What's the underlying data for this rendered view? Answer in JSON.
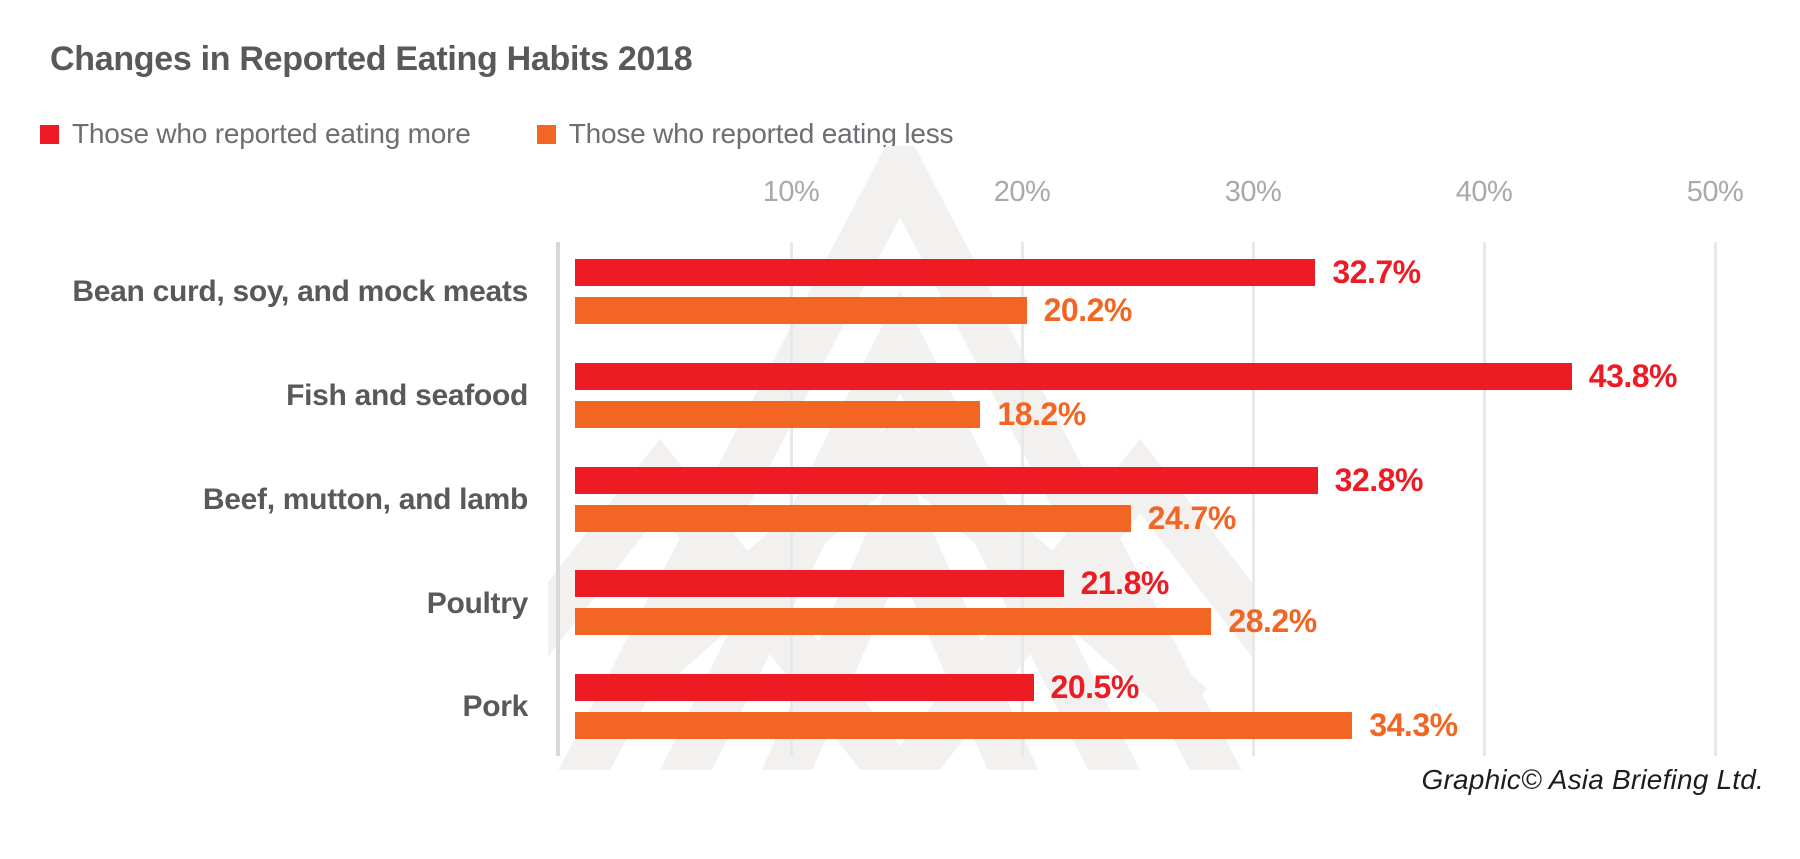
{
  "title": "Changes in Reported Eating Habits 2018",
  "legend": {
    "more": "Those who reported eating more",
    "less": "Those who reported eating less"
  },
  "credit": "Graphic© Asia Briefing Ltd.",
  "colors": {
    "more": "#ed1c24",
    "less": "#f26522",
    "heading_text": "#58595b",
    "legend_text": "#6d6e71",
    "tick_text": "#a7a9ac",
    "gridline": "#e7e8e9",
    "axis_line": "#d7d8d9",
    "watermark": "#f2f1ef"
  },
  "chart_data": {
    "type": "bar",
    "orientation": "horizontal",
    "title": "Changes in Reported Eating Habits 2018",
    "categories": [
      "Bean curd, soy, and mock meats",
      "Fish and seafood",
      "Beef, mutton, and lamb",
      "Poultry",
      "Pork"
    ],
    "series": [
      {
        "name": "Those who reported eating more",
        "color": "#ed1c24",
        "values": [
          32.7,
          43.8,
          32.8,
          21.8,
          20.5
        ],
        "labels": [
          "32.7%",
          "43.8%",
          "32.8%",
          "21.8%",
          "20.5%"
        ]
      },
      {
        "name": "Those who reported eating less",
        "color": "#f26522",
        "values": [
          20.2,
          18.2,
          24.7,
          28.2,
          34.3
        ],
        "labels": [
          "20.2%",
          "18.2%",
          "24.7%",
          "28.2%",
          "34.3%"
        ]
      }
    ],
    "x_ticks": [
      "10%",
      "20%",
      "30%",
      "40%",
      "50%"
    ],
    "x_tick_values": [
      10,
      20,
      30,
      40,
      50
    ],
    "xlim": [
      0,
      51.5
    ],
    "grid": "vertical-only",
    "legend_position": "top-left",
    "value_labels_shown": true
  }
}
